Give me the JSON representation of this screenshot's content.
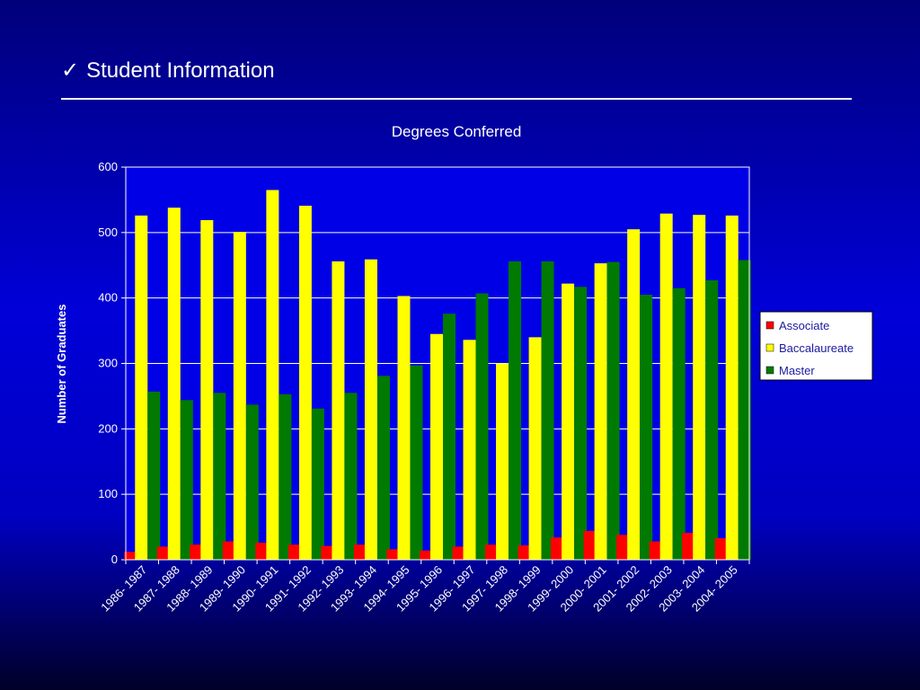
{
  "slide": {
    "check_glyph": "✓",
    "title": "Student Information"
  },
  "colors": {
    "background_top": "#00007a",
    "background_mid": "#0000d8",
    "background_bottom": "#000028",
    "plot_area": "#0000e6",
    "Associate": "#ff0000",
    "Baccalaureate": "#ffff00",
    "Master": "#007a00"
  },
  "chart_data": {
    "type": "bar",
    "title": "Degrees Conferred",
    "xlabel": "",
    "ylabel": "Number of Graduates",
    "ylim": [
      0,
      600
    ],
    "yticks": [
      0,
      100,
      200,
      300,
      400,
      500,
      600
    ],
    "grid": true,
    "legend_position": "right",
    "categories": [
      "1986- 1987",
      "1987- 1988",
      "1988- 1989",
      "1989- 1990",
      "1990- 1991",
      "1991- 1992",
      "1992- 1993",
      "1993- 1994",
      "1994- 1995",
      "1995- 1996",
      "1996- 1997",
      "1997- 1998",
      "1998- 1999",
      "1999- 2000",
      "2000- 2001",
      "2001- 2002",
      "2002- 2003",
      "2003- 2004",
      "2004- 2005"
    ],
    "series": [
      {
        "name": "Associate",
        "values": [
          12,
          20,
          23,
          28,
          26,
          23,
          21,
          23,
          16,
          14,
          20,
          23,
          22,
          34,
          44,
          38,
          28,
          41,
          33
        ]
      },
      {
        "name": "Baccalaureate",
        "values": [
          526,
          538,
          519,
          501,
          565,
          541,
          456,
          459,
          403,
          345,
          336,
          300,
          340,
          422,
          453,
          505,
          529,
          527,
          526
        ]
      },
      {
        "name": "Master",
        "values": [
          257,
          244,
          255,
          237,
          253,
          231,
          255,
          281,
          297,
          376,
          407,
          456,
          456,
          417,
          455,
          405,
          415,
          427,
          458
        ]
      }
    ]
  }
}
